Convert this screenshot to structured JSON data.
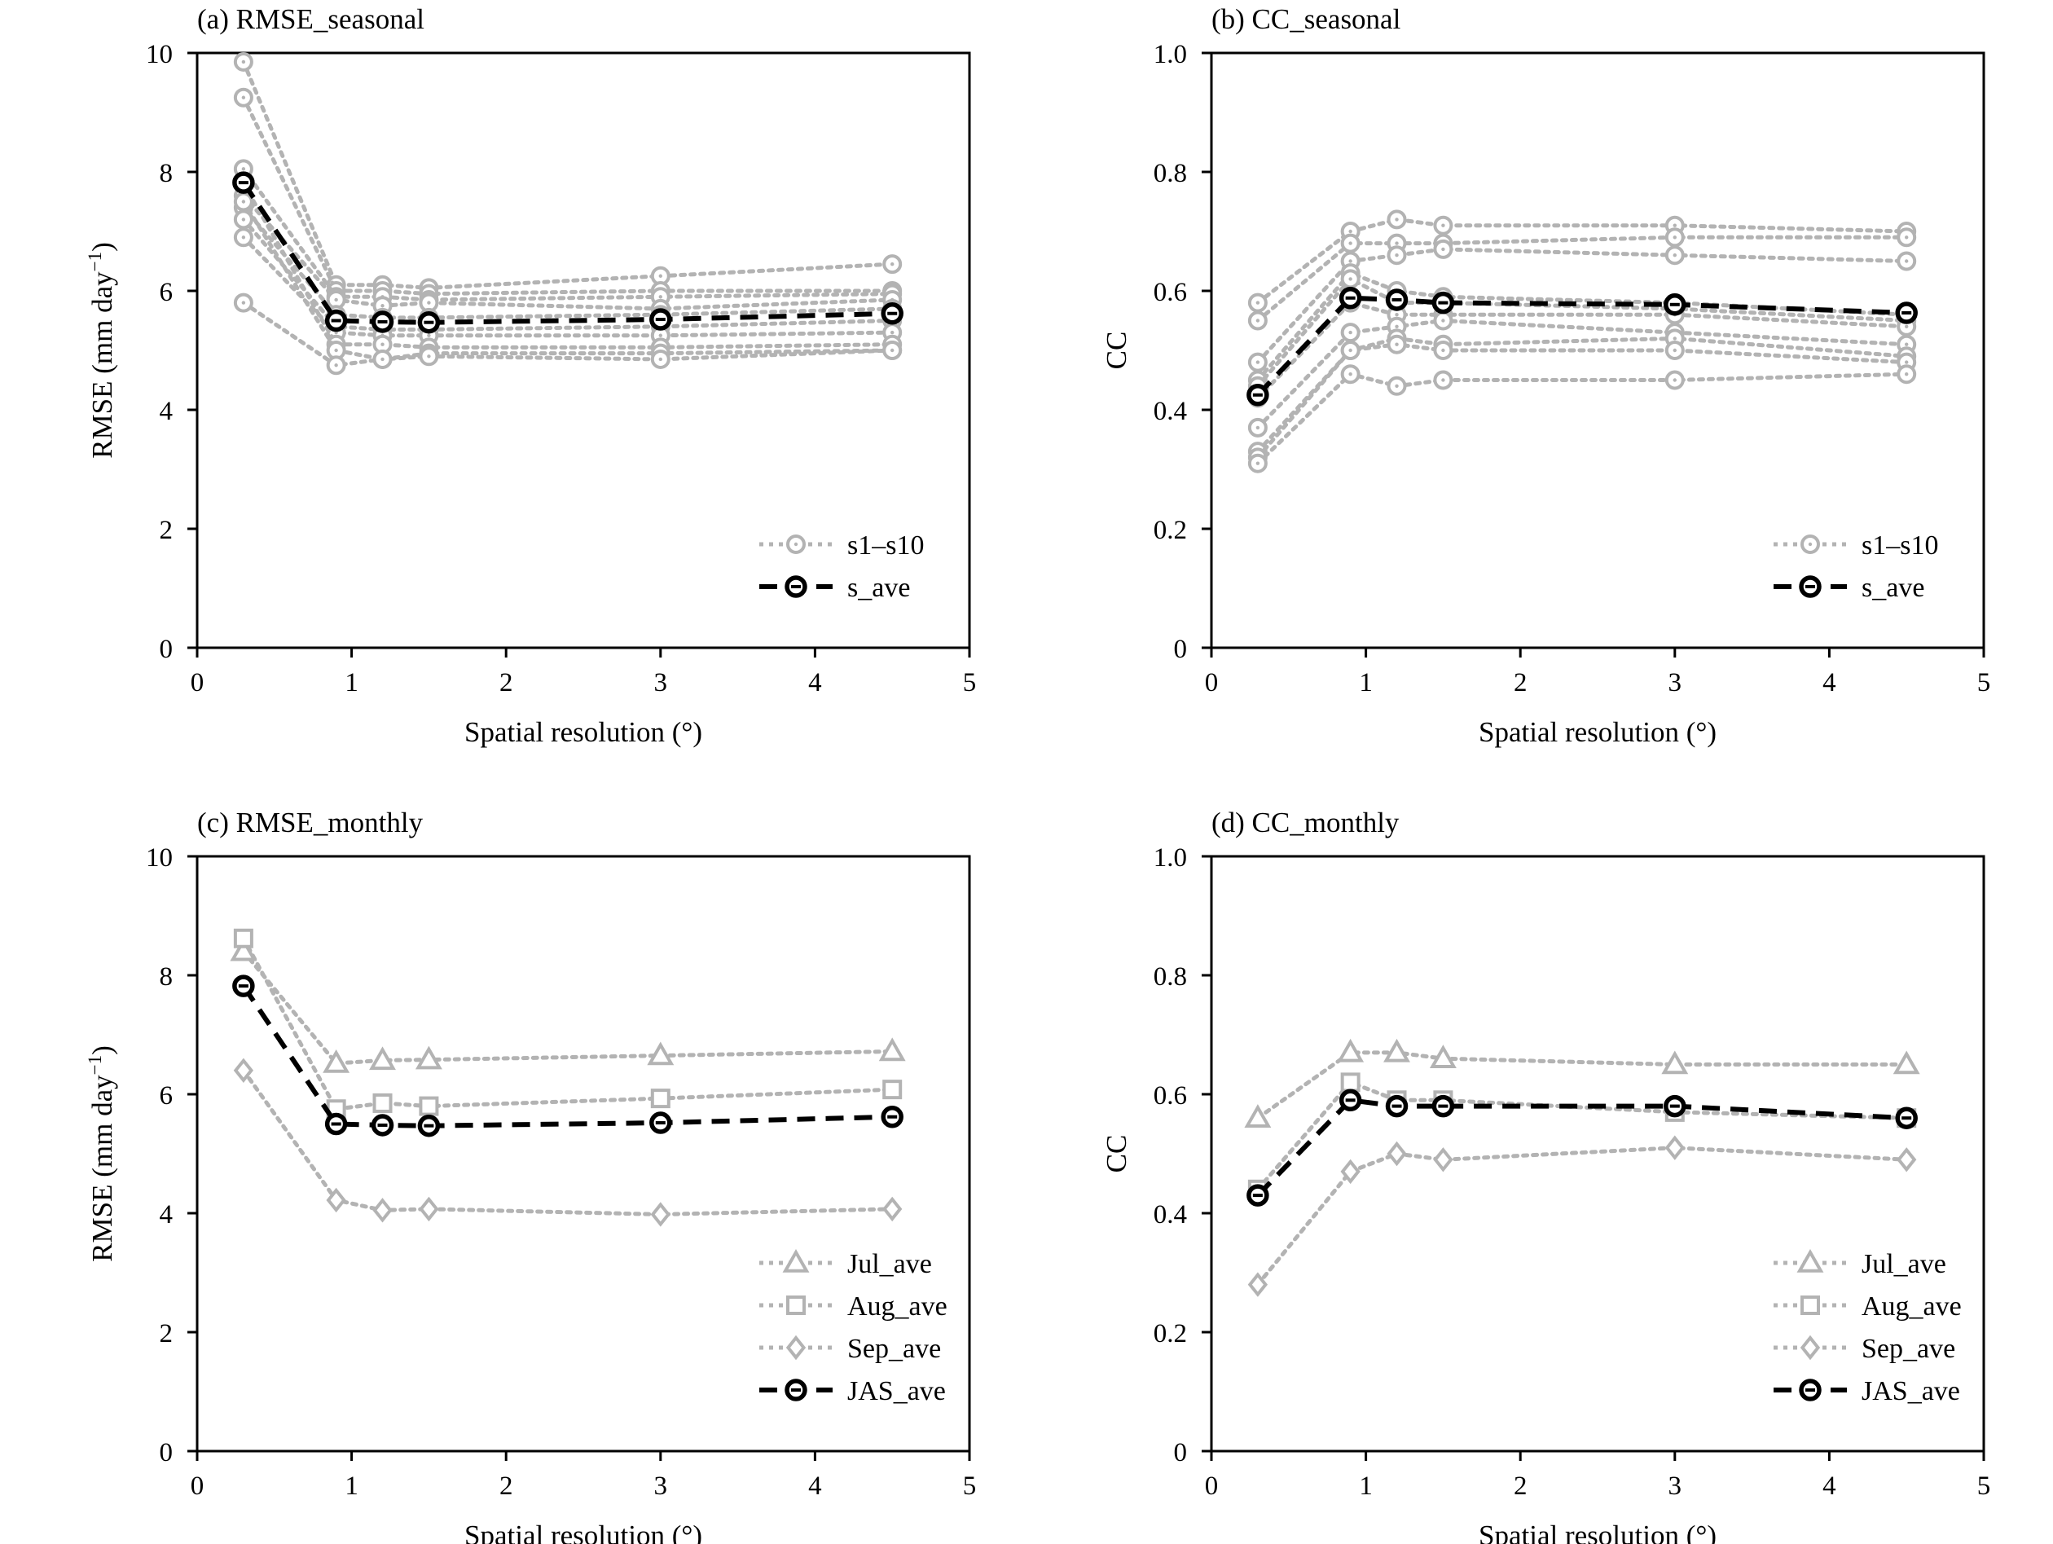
{
  "chart_data": [
    {
      "id": "a",
      "type": "line",
      "title": "(a) RMSE_seasonal",
      "xlabel": "Spatial resolution (°)",
      "ylabel_main": "RMSE (mm day",
      "ylabel_sup": "−1",
      "ylabel_close": ")",
      "xlim": [
        0,
        5
      ],
      "ylim": [
        0,
        10
      ],
      "xticks": [
        0,
        1,
        2,
        3,
        4,
        5
      ],
      "xtick_labels": [
        "0",
        "1",
        "2",
        "3",
        "4",
        "5"
      ],
      "yticks": [
        0,
        2,
        4,
        6,
        8,
        10
      ],
      "ytick_labels": [
        "0",
        "2",
        "4",
        "6",
        "8",
        "10"
      ],
      "grid": false,
      "legend": {
        "position": "bottom-right",
        "entries": [
          "s1–s10",
          "s_ave"
        ]
      },
      "x": [
        0.3,
        0.9,
        1.2,
        1.5,
        3,
        4.5
      ],
      "series": [
        {
          "name": "s1–s10",
          "style": "gray",
          "marker": "circle",
          "values": [
            9.85,
            6.1,
            6.1,
            6.05,
            6.25,
            6.45
          ]
        },
        {
          "style": "gray",
          "marker": "circle",
          "values": [
            9.25,
            6.0,
            6.0,
            5.95,
            6.0,
            6.0
          ]
        },
        {
          "style": "gray",
          "marker": "circle",
          "values": [
            8.05,
            5.9,
            5.9,
            5.85,
            5.9,
            5.95
          ]
        },
        {
          "style": "gray",
          "marker": "circle",
          "values": [
            7.6,
            5.85,
            5.75,
            5.8,
            5.7,
            5.85
          ]
        },
        {
          "style": "gray",
          "marker": "circle",
          "values": [
            7.4,
            5.6,
            5.55,
            5.55,
            5.6,
            5.7
          ]
        },
        {
          "style": "gray",
          "marker": "circle",
          "values": [
            7.2,
            5.4,
            5.35,
            5.35,
            5.4,
            5.5
          ]
        },
        {
          "style": "gray",
          "marker": "circle",
          "values": [
            6.9,
            5.3,
            5.25,
            5.25,
            5.25,
            5.3
          ]
        },
        {
          "style": "gray",
          "marker": "circle",
          "values": [
            7.8,
            5.1,
            5.1,
            5.05,
            5.05,
            5.1
          ]
        },
        {
          "style": "gray",
          "marker": "circle",
          "values": [
            7.5,
            5.0,
            4.85,
            4.95,
            4.95,
            5.0
          ]
        },
        {
          "style": "gray",
          "marker": "circle",
          "values": [
            5.8,
            4.75,
            4.85,
            4.9,
            4.85,
            5.0
          ]
        },
        {
          "name": "s_ave",
          "style": "black",
          "marker": "circle",
          "values": [
            7.82,
            5.5,
            5.48,
            5.47,
            5.52,
            5.62
          ]
        }
      ]
    },
    {
      "id": "b",
      "type": "line",
      "title": "(b) CC_seasonal",
      "xlabel": "Spatial resolution (°)",
      "ylabel_main": "CC",
      "xlim": [
        0,
        5
      ],
      "ylim": [
        0,
        1.0
      ],
      "xticks": [
        0,
        1,
        2,
        3,
        4,
        5
      ],
      "xtick_labels": [
        "0",
        "1",
        "2",
        "3",
        "4",
        "5"
      ],
      "yticks": [
        0,
        0.2,
        0.4,
        0.6,
        0.8,
        1.0
      ],
      "ytick_labels": [
        "0",
        "0.2",
        "0.4",
        "0.6",
        "0.8",
        "1.0"
      ],
      "grid": false,
      "legend": {
        "position": "bottom-right",
        "entries": [
          "s1–s10",
          "s_ave"
        ]
      },
      "x": [
        0.3,
        0.9,
        1.2,
        1.5,
        3,
        4.5
      ],
      "series": [
        {
          "name": "s1–s10",
          "style": "gray",
          "marker": "circle",
          "values": [
            0.58,
            0.7,
            0.72,
            0.71,
            0.71,
            0.7
          ]
        },
        {
          "style": "gray",
          "marker": "circle",
          "values": [
            0.55,
            0.68,
            0.68,
            0.68,
            0.69,
            0.69
          ]
        },
        {
          "style": "gray",
          "marker": "circle",
          "values": [
            0.48,
            0.65,
            0.66,
            0.67,
            0.66,
            0.65
          ]
        },
        {
          "style": "gray",
          "marker": "circle",
          "values": [
            0.45,
            0.63,
            0.6,
            0.59,
            0.58,
            0.56
          ]
        },
        {
          "style": "gray",
          "marker": "circle",
          "values": [
            0.44,
            0.62,
            0.58,
            0.58,
            0.57,
            0.55
          ]
        },
        {
          "style": "gray",
          "marker": "circle",
          "values": [
            0.42,
            0.58,
            0.56,
            0.56,
            0.56,
            0.54
          ]
        },
        {
          "style": "gray",
          "marker": "circle",
          "values": [
            0.37,
            0.53,
            0.54,
            0.55,
            0.53,
            0.51
          ]
        },
        {
          "style": "gray",
          "marker": "circle",
          "values": [
            0.33,
            0.5,
            0.52,
            0.51,
            0.52,
            0.49
          ]
        },
        {
          "style": "gray",
          "marker": "circle",
          "values": [
            0.32,
            0.5,
            0.51,
            0.5,
            0.5,
            0.48
          ]
        },
        {
          "style": "gray",
          "marker": "circle",
          "values": [
            0.31,
            0.46,
            0.44,
            0.45,
            0.45,
            0.46
          ]
        },
        {
          "name": "s_ave",
          "style": "black",
          "marker": "circle",
          "values": [
            0.425,
            0.588,
            0.585,
            0.58,
            0.577,
            0.563
          ]
        }
      ]
    },
    {
      "id": "c",
      "type": "line",
      "title": "(c) RMSE_monthly",
      "xlabel": "Spatial resolution (°)",
      "ylabel_main": "RMSE (mm day",
      "ylabel_sup": "−1",
      "ylabel_close": ")",
      "xlim": [
        0,
        5
      ],
      "ylim": [
        0,
        10
      ],
      "xticks": [
        0,
        1,
        2,
        3,
        4,
        5
      ],
      "xtick_labels": [
        "0",
        "1",
        "2",
        "3",
        "4",
        "5"
      ],
      "yticks": [
        0,
        2,
        4,
        6,
        8,
        10
      ],
      "ytick_labels": [
        "0",
        "2",
        "4",
        "6",
        "8",
        "10"
      ],
      "grid": false,
      "legend": {
        "position": "bottom-right",
        "entries": [
          "Jul_ave",
          "Aug_ave",
          "Sep_ave",
          "JAS_ave"
        ]
      },
      "x": [
        0.3,
        0.9,
        1.2,
        1.5,
        3,
        4.5
      ],
      "series": [
        {
          "name": "Jul_ave",
          "style": "gray",
          "marker": "triangle",
          "values": [
            8.4,
            6.52,
            6.57,
            6.58,
            6.65,
            6.72
          ]
        },
        {
          "name": "Aug_ave",
          "style": "gray",
          "marker": "square",
          "values": [
            8.62,
            5.75,
            5.85,
            5.8,
            5.93,
            6.08
          ]
        },
        {
          "name": "Sep_ave",
          "style": "gray",
          "marker": "diamond",
          "values": [
            6.4,
            4.22,
            4.05,
            4.07,
            3.98,
            4.07
          ]
        },
        {
          "name": "JAS_ave",
          "style": "black",
          "marker": "circle",
          "values": [
            7.82,
            5.5,
            5.48,
            5.47,
            5.52,
            5.62
          ]
        }
      ]
    },
    {
      "id": "d",
      "type": "line",
      "title": "(d) CC_monthly",
      "xlabel": "Spatial resolution (°)",
      "ylabel_main": "CC",
      "xlim": [
        0,
        5
      ],
      "ylim": [
        0,
        1.0
      ],
      "xticks": [
        0,
        1,
        2,
        3,
        4,
        5
      ],
      "xtick_labels": [
        "0",
        "1",
        "2",
        "3",
        "4",
        "5"
      ],
      "yticks": [
        0,
        0.2,
        0.4,
        0.6,
        0.8,
        1.0
      ],
      "ytick_labels": [
        "0",
        "0.2",
        "0.4",
        "0.6",
        "0.8",
        "1.0"
      ],
      "grid": false,
      "legend": {
        "position": "bottom-right",
        "entries": [
          "Jul_ave",
          "Aug_ave",
          "Sep_ave",
          "JAS_ave"
        ]
      },
      "x": [
        0.3,
        0.9,
        1.2,
        1.5,
        3,
        4.5
      ],
      "series": [
        {
          "name": "Jul_ave",
          "style": "gray",
          "marker": "triangle",
          "values": [
            0.56,
            0.67,
            0.67,
            0.66,
            0.65,
            0.65
          ]
        },
        {
          "name": "Aug_ave",
          "style": "gray",
          "marker": "square",
          "values": [
            0.44,
            0.62,
            0.59,
            0.59,
            0.57,
            0.56
          ]
        },
        {
          "name": "Sep_ave",
          "style": "gray",
          "marker": "diamond",
          "values": [
            0.28,
            0.47,
            0.5,
            0.49,
            0.51,
            0.49
          ]
        },
        {
          "name": "JAS_ave",
          "style": "black",
          "marker": "circle",
          "values": [
            0.43,
            0.59,
            0.58,
            0.58,
            0.58,
            0.56
          ]
        }
      ]
    }
  ],
  "colors": {
    "gray_series": "#b3b3b3",
    "black_series": "#000000",
    "axes": "#000000"
  }
}
